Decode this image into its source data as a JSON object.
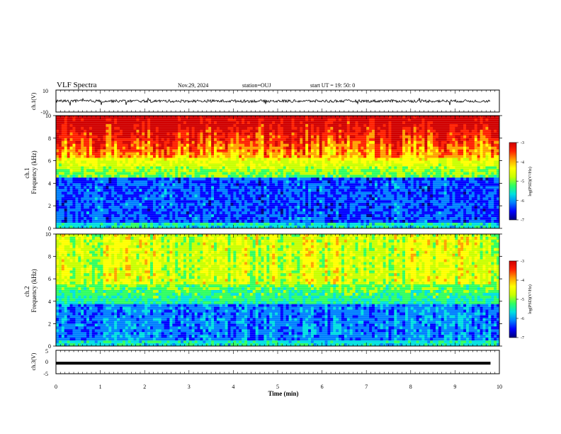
{
  "header": {
    "title": "VLF Spectra",
    "date": "Nov.29, 2024",
    "station": "station=OUJ",
    "start_ut": "start  UT  =   19: 50: 0"
  },
  "chart_data": [
    {
      "type": "line",
      "panel": "ch1-waveform",
      "ylabel": "ch.1(V)",
      "ylim": [
        -10,
        10
      ],
      "yticks": [
        "10",
        "-10"
      ],
      "xlim": [
        0,
        10
      ],
      "baseline_value": 0,
      "color": "#000000"
    },
    {
      "type": "heatmap",
      "panel": "ch1-spectrogram",
      "ylabel": "ch.1\nFrequency  (kHz)",
      "xlim": [
        0,
        10
      ],
      "ylim": [
        0,
        10
      ],
      "yticks": [
        "0",
        "2",
        "4",
        "6",
        "8",
        "10"
      ],
      "colorbar": {
        "label": "log(PSD)(V²/Hz)",
        "range": [
          -7,
          -3
        ],
        "ticks": [
          "-3",
          "-4",
          "-5",
          "-6",
          "-7"
        ]
      }
    },
    {
      "type": "heatmap",
      "panel": "ch2-spectrogram",
      "ylabel": "ch.2\nFrequency  (kHz)",
      "xlim": [
        0,
        10
      ],
      "ylim": [
        0,
        10
      ],
      "yticks": [
        "0",
        "2",
        "4",
        "6",
        "8",
        "10"
      ],
      "colorbar": {
        "label": "log(PSD)(V²/Hz)",
        "range": [
          -7,
          -3
        ],
        "ticks": [
          "-3",
          "-4",
          "-5",
          "-6",
          "-7"
        ]
      }
    },
    {
      "type": "line",
      "panel": "ch3-waveform",
      "ylabel": "ch.3(V)",
      "ylim": [
        -5,
        5
      ],
      "yticks": [
        "5",
        "0",
        "-5"
      ],
      "xlim": [
        0,
        10
      ],
      "baseline_value": -0.5,
      "color": "#000000"
    }
  ],
  "xaxis": {
    "label": "Time  (min)",
    "ticks": [
      "0",
      "1",
      "2",
      "3",
      "4",
      "5",
      "6",
      "7",
      "8",
      "9",
      "10"
    ]
  },
  "colormap": [
    "#00007a",
    "#0000ff",
    "#0080ff",
    "#00e0e0",
    "#30ff60",
    "#c8ff00",
    "#ffff00",
    "#ffa000",
    "#ff2000",
    "#d00000"
  ]
}
